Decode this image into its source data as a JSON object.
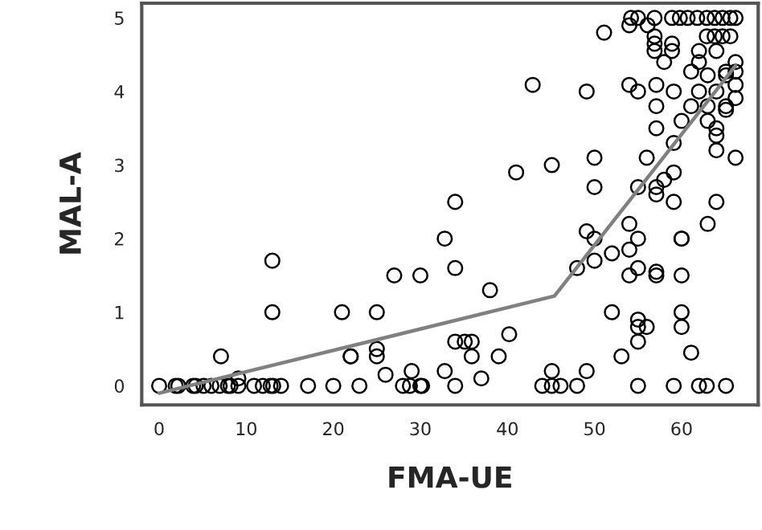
{
  "chart_data": {
    "type": "scatter",
    "xlabel": "FMA-UE",
    "ylabel": "MAL-A",
    "xlim": [
      -2,
      68.8
    ],
    "ylim": [
      -0.26,
      5.2
    ],
    "xticks": [
      0,
      10,
      20,
      30,
      40,
      50,
      60
    ],
    "yticks": [
      0,
      1,
      2,
      3,
      4,
      5
    ],
    "grid": false,
    "legend": false,
    "series": [
      {
        "marker": "circle",
        "color": "#000000",
        "x": [
          0,
          1.9,
          2.2,
          3.9,
          4.2,
          5.1,
          6.0,
          6.95,
          7.9,
          8.2,
          9.1,
          10.9,
          11.9,
          12.8,
          13.1,
          14.0,
          17.1,
          20.0,
          23.0,
          28.0,
          28.8,
          30.0,
          30.2,
          7.1,
          9.1,
          13,
          13,
          21,
          25,
          22,
          22,
          25,
          25,
          26,
          27,
          30,
          29,
          32.8,
          32.8,
          54.2,
          55.0,
          56.9,
          58.9,
          59.8,
          60.7,
          61.8,
          62.9,
          63.8,
          64.7,
          65.6,
          66.2,
          54,
          56.1,
          51.1,
          56.9,
          56.9,
          56.9,
          58.0,
          58.9,
          58.9,
          62.0,
          62.0,
          62.9,
          63.8,
          64.7,
          65.6,
          64.0,
          61.1,
          66.2,
          65.1,
          66.2,
          42.9,
          49.1,
          54,
          55.0,
          57.1,
          59.1,
          62.0,
          63.0,
          64.0,
          65.1,
          66.2,
          66.2,
          57.1,
          61.1,
          63.0,
          65.1,
          65.1,
          60.0,
          63.0,
          64.0,
          64.0,
          57.1,
          59.1,
          64.0,
          66.2,
          41,
          45.1,
          50,
          56.0,
          50,
          55,
          57.1,
          57.1,
          58,
          59.1,
          59.1,
          64,
          63,
          34.0,
          34,
          38,
          49.1,
          50,
          54,
          55,
          54,
          52,
          48,
          50,
          54,
          55,
          57.1,
          57.1,
          60.0,
          60.0,
          60,
          52,
          55,
          55,
          56,
          55,
          60,
          60,
          61.1,
          53.1,
          34,
          35.1,
          35.9,
          35.9,
          40.2,
          39,
          37,
          45.1,
          49.1,
          34,
          44,
          45.1,
          46.1,
          48,
          55,
          59.1,
          62,
          62.9,
          65.1
        ],
        "values": [
          0,
          0,
          0,
          0,
          0,
          0,
          0,
          0,
          0,
          0,
          0,
          0,
          0,
          0,
          0,
          0,
          0,
          0,
          0,
          0,
          0,
          0,
          0,
          0.4,
          0.1,
          1.7,
          1.0,
          1.0,
          1.0,
          0.4,
          0.4,
          0.5,
          0.4,
          0.15,
          1.5,
          1.5,
          0.2,
          2.0,
          0.2,
          5,
          5,
          5,
          5,
          5,
          5,
          5,
          5,
          5,
          5,
          5,
          5,
          4.9,
          4.9,
          4.8,
          4.75,
          4.65,
          4.55,
          4.4,
          4.55,
          4.65,
          4.55,
          4.4,
          4.75,
          4.75,
          4.75,
          4.75,
          4.55,
          4.27,
          4.4,
          4.27,
          4.27,
          4.09,
          4.0,
          4.09,
          4.0,
          4.09,
          4.0,
          4.0,
          4.22,
          4.0,
          4.22,
          4.09,
          3.91,
          3.8,
          3.8,
          3.8,
          3.8,
          3.75,
          3.6,
          3.6,
          3.5,
          3.4,
          3.5,
          3.3,
          3.2,
          3.1,
          2.9,
          3.0,
          3.1,
          3.1,
          2.7,
          2.7,
          2.7,
          2.6,
          2.8,
          2.9,
          2.5,
          2.5,
          2.2,
          2.5,
          1.6,
          1.3,
          2.1,
          2.0,
          2.2,
          2.0,
          1.85,
          1.8,
          1.6,
          1.7,
          1.5,
          1.6,
          1.55,
          1.5,
          2.0,
          2.0,
          1.5,
          1.0,
          0.9,
          0.8,
          0.8,
          0.6,
          1.0,
          0.8,
          0.45,
          0.4,
          0.6,
          0.6,
          0.6,
          0.4,
          0.7,
          0.4,
          0.1,
          0.2,
          0.2,
          0,
          0,
          0,
          0,
          0,
          0,
          0,
          0,
          0,
          0
        ]
      },
      {
        "type": "line",
        "color": "#808080",
        "x": [
          0,
          45.4,
          66.2
        ],
        "values": [
          -0.1,
          1.22,
          4.35
        ]
      }
    ]
  }
}
